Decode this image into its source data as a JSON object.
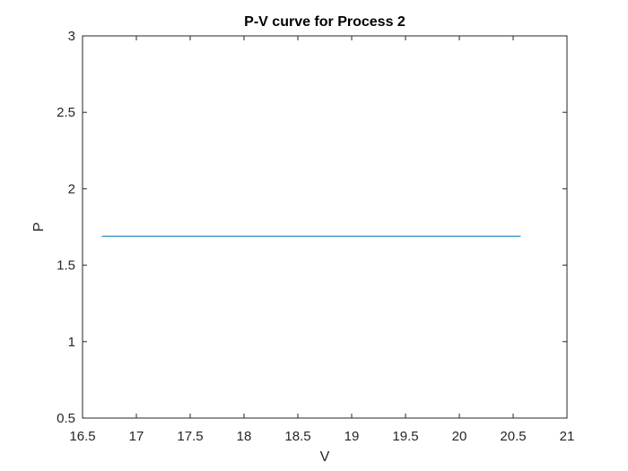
{
  "chart_data": {
    "type": "line",
    "title": "P-V curve for Process 2",
    "xlabel": "V",
    "ylabel": "P",
    "xlim": [
      16.5,
      21
    ],
    "ylim": [
      0.5,
      3
    ],
    "xticks": [
      "16.5",
      "17",
      "17.5",
      "18",
      "18.5",
      "19",
      "19.5",
      "20",
      "20.5",
      "21"
    ],
    "yticks": [
      "0.5",
      "1",
      "1.5",
      "2",
      "2.5",
      "3"
    ],
    "grid": false,
    "series": [
      {
        "x": [
          16.68,
          20.57
        ],
        "y": [
          1.69,
          1.69
        ],
        "color": "#0072BD"
      }
    ]
  }
}
